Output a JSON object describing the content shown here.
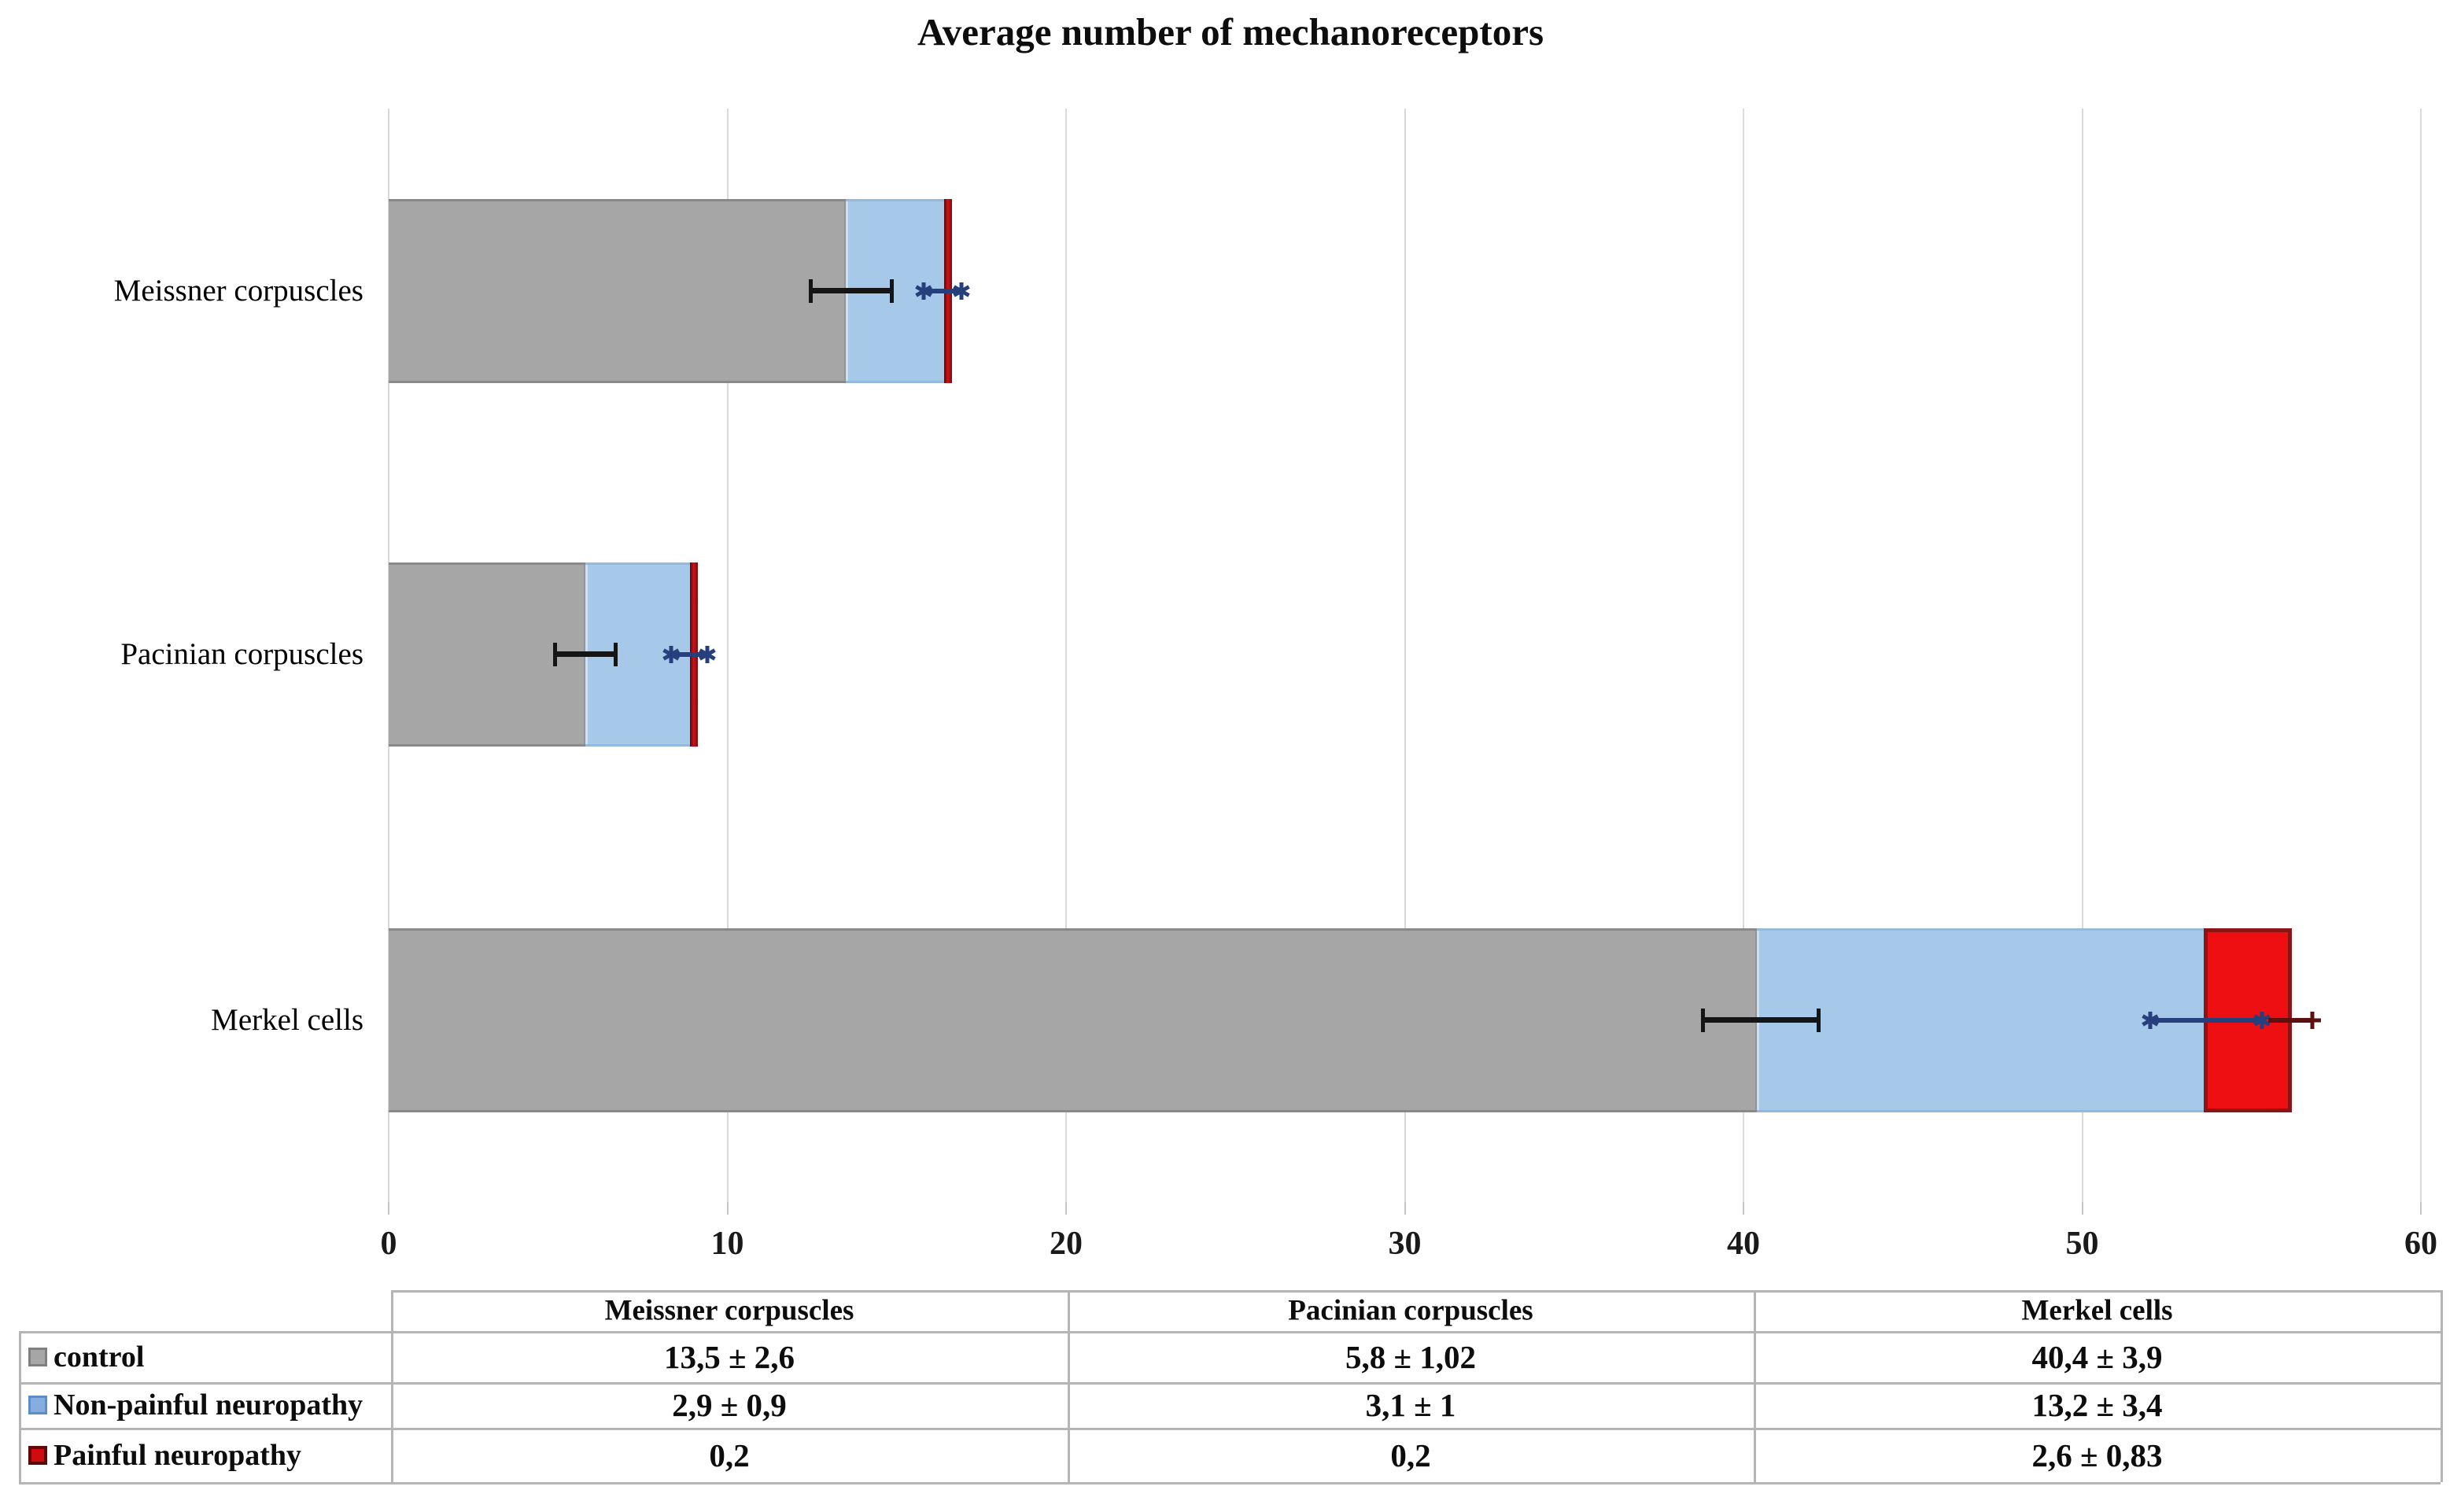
{
  "chart_data": {
    "type": "bar",
    "orientation": "horizontal",
    "stacked": true,
    "title": "Average number of mechanoreceptors",
    "categories": [
      "Meissner corpuscles",
      "Pacinian corpuscles",
      "Merkel cells"
    ],
    "series": [
      {
        "name": "control",
        "color_key": "gray",
        "color": "#a6a6a6",
        "values": [
          13.5,
          5.8,
          40.4
        ],
        "sd": [
          2.6,
          1.02,
          3.9
        ]
      },
      {
        "name": "Non-painful neuropathy",
        "color_key": "blue",
        "color": "#a7c9e9",
        "values": [
          2.9,
          3.1,
          13.2
        ],
        "sd": [
          0.9,
          1,
          3.4
        ]
      },
      {
        "name": "Painful neuropathy",
        "color_key": "red",
        "color": "#ee0f13",
        "values": [
          0.2,
          0.2,
          2.6
        ],
        "sd": [
          null,
          null,
          0.83
        ]
      }
    ],
    "xlim": [
      0,
      60
    ],
    "x_ticks": [
      0,
      10,
      20,
      30,
      40,
      50,
      60
    ],
    "grid": "vertical-light-gray",
    "legend_position": "table-left-column",
    "error_whiskers_visual": [
      {
        "series": "control",
        "style": "cap",
        "color": "#151515",
        "ranges": [
          [
            12.45,
            14.85
          ],
          [
            4.9,
            6.7
          ],
          [
            38.8,
            42.2
          ]
        ]
      },
      {
        "series": "Non-painful neuropathy",
        "style": "star",
        "color": "#25407c",
        "ranges": [
          [
            15.8,
            16.9
          ],
          [
            8.35,
            9.4
          ],
          [
            52.0,
            55.3
          ]
        ]
      },
      {
        "series": "Painful neuropathy",
        "style": "plus",
        "color": "#5c1010",
        "ranges": [
          null,
          null,
          [
            55.5,
            56.8
          ]
        ]
      }
    ]
  },
  "table": {
    "col_headers": [
      "Meissner corpuscles",
      "Pacinian corpuscles",
      "Merkel cells"
    ],
    "rows": [
      {
        "label": "control",
        "swatch": "gray",
        "values": [
          "13,5 ± 2,6",
          "5,8 ± 1,02",
          "40,4 ± 3,9"
        ]
      },
      {
        "label": "Non-painful neuropathy",
        "swatch": "blue",
        "values": [
          "2,9 ± 0,9",
          "3,1 ± 1",
          "13,2 ± 3,4"
        ]
      },
      {
        "label": "Painful neuropathy",
        "swatch": "red",
        "values": [
          "0,2",
          "0,2",
          "2,6 ± 0,83"
        ]
      }
    ]
  },
  "colors": {
    "bar_gray": "#a6a6a6",
    "bar_blue": "#a7c9e9",
    "bar_red": "#ee0f13",
    "bar_red_border": "#8c1414",
    "gridline": "#d9d9d9",
    "table_border": "#b5b5b5",
    "error_black": "#151515",
    "error_navy": "#25407c",
    "error_darkred": "#5c1010"
  }
}
